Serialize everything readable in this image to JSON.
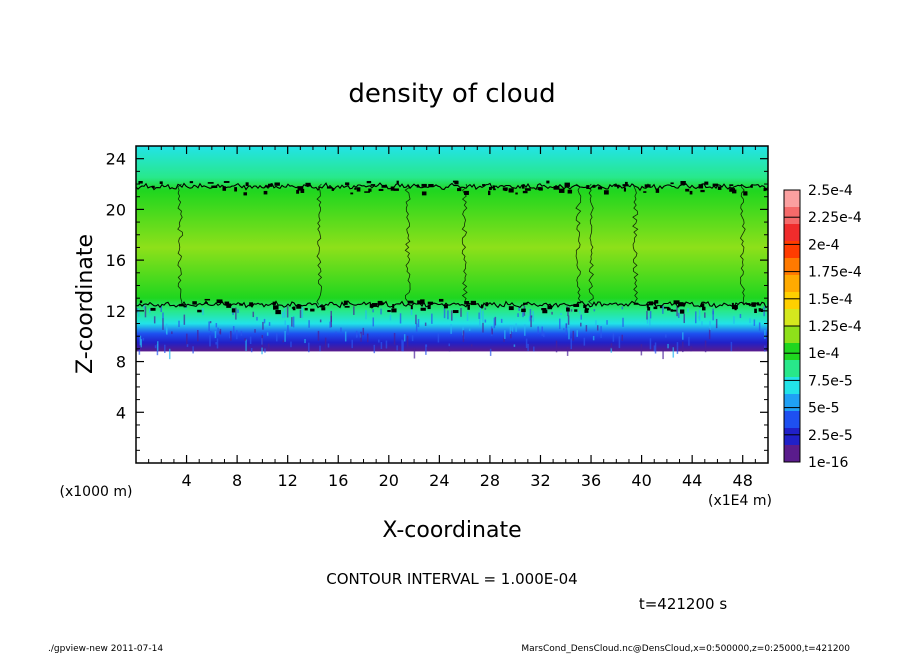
{
  "chart_data": {
    "type": "heatmap",
    "title": "density of cloud",
    "xlabel": "X-coordinate",
    "ylabel": "Z-coordinate",
    "x_unit": "(x1E4 m)",
    "y_unit": "(x1000 m)",
    "xlim": [
      0,
      50
    ],
    "ylim": [
      0,
      25
    ],
    "x_ticks": [
      4,
      8,
      12,
      16,
      20,
      24,
      28,
      32,
      36,
      40,
      44,
      48
    ],
    "y_ticks": [
      4,
      8,
      12,
      16,
      20,
      24
    ],
    "colorbar": {
      "labels": [
        "1e-16",
        "2.5e-5",
        "5e-5",
        "7.5e-5",
        "1e-4",
        "1.25e-4",
        "1.5e-4",
        "1.75e-4",
        "2e-4",
        "2.25e-4",
        "2.5e-4"
      ],
      "colors": [
        "#5a1c8c",
        "#2020c8",
        "#1e50f0",
        "#1fa0f5",
        "#22e3e8",
        "#28e88a",
        "#1fd61f",
        "#8ee01a",
        "#d4e81e",
        "#ffd000",
        "#ffaa00",
        "#ff7a00",
        "#ff3c00",
        "#f02c2c",
        "#f56a6a",
        "#fba0a0"
      ]
    },
    "field_profile": [
      {
        "z": 8.8,
        "value": 0.0
      },
      {
        "z": 9.5,
        "value": 1e-05
      },
      {
        "z": 10.2,
        "value": 3e-05
      },
      {
        "z": 11.0,
        "value": 6e-05
      },
      {
        "z": 12.0,
        "value": 8.5e-05
      },
      {
        "z": 13.0,
        "value": 0.000105
      },
      {
        "z": 17.0,
        "value": 0.000115
      },
      {
        "z": 21.5,
        "value": 0.000105
      },
      {
        "z": 22.5,
        "value": 8e-05
      },
      {
        "z": 25.0,
        "value": 7e-05
      }
    ],
    "contour_lines": [
      {
        "z": 12.5
      },
      {
        "z": 21.8
      }
    ],
    "contour_interval": "CONTOUR INTERVAL = 1.000E-04",
    "time_label": "t=421200 s"
  },
  "footer": {
    "left": "./gpview-new  2011-07-14",
    "right": "MarsCond_DensCloud.nc@DensCloud,x=0:500000,z=0:25000,t=421200"
  }
}
